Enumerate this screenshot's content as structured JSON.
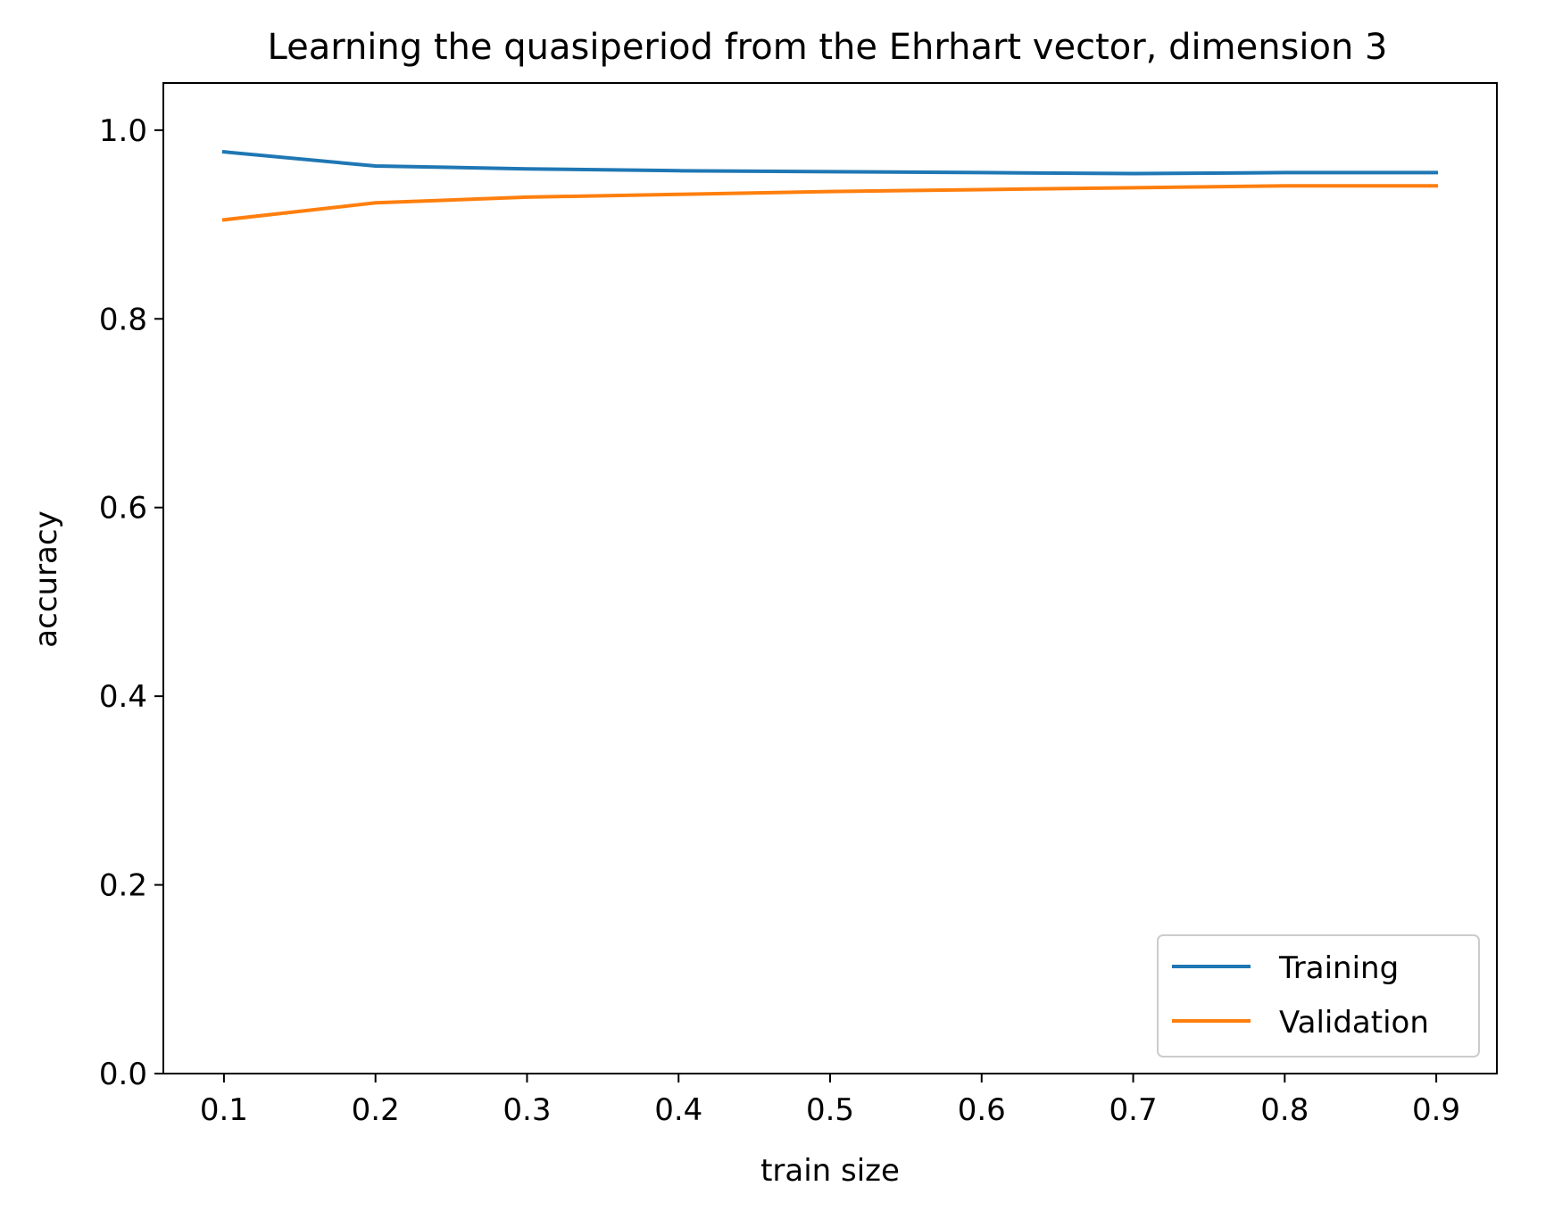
{
  "chart_data": {
    "type": "line",
    "title": "Learning the quasiperiod from the Ehrhart vector, dimension 3",
    "xlabel": "train size",
    "ylabel": "accuracy",
    "x": [
      0.1,
      0.2,
      0.3,
      0.4,
      0.5,
      0.6,
      0.7,
      0.8,
      0.9
    ],
    "xlim": [
      0.06,
      0.94
    ],
    "ylim": [
      0,
      1.05
    ],
    "xticks": [
      "0.1",
      "0.2",
      "0.3",
      "0.4",
      "0.5",
      "0.6",
      "0.7",
      "0.8",
      "0.9"
    ],
    "yticks": [
      "0.0",
      "0.2",
      "0.4",
      "0.6",
      "0.8",
      "1.0"
    ],
    "grid": false,
    "legend_position": "lower-right",
    "series": [
      {
        "name": "Training",
        "color": "#1f77b4",
        "values": [
          0.977,
          0.962,
          0.959,
          0.957,
          0.956,
          0.955,
          0.954,
          0.955,
          0.955
        ]
      },
      {
        "name": "Validation",
        "color": "#ff7f0e",
        "values": [
          0.905,
          0.923,
          0.929,
          0.932,
          0.935,
          0.937,
          0.939,
          0.941,
          0.941
        ]
      }
    ]
  }
}
